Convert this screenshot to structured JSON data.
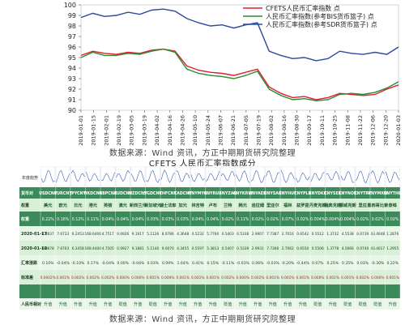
{
  "chart_data": [
    {
      "type": "line",
      "title": "",
      "ylim": [
        90,
        100
      ],
      "yticks": [
        90,
        91,
        92,
        93,
        94,
        95,
        96,
        97,
        98,
        99,
        100
      ],
      "x": [
        "2019-01-01",
        "2019-01-15",
        "2019-01-29",
        "2019-02-12",
        "2019-02-26",
        "2019-03-12",
        "2019-03-26",
        "2019-04-09",
        "2019-04-23",
        "2019-05-07",
        "2019-05-21",
        "2019-06-04",
        "2019-06-18",
        "2019-07-02",
        "2019-07-16",
        "2019-07-30",
        "2019-08-13",
        "2019-08-27",
        "2019-09-10",
        "2019-09-24",
        "2019-10-08",
        "2019-10-22",
        "2019-11-05",
        "2019-11-19",
        "2019-12-03",
        "2019-12-17",
        "2019-12-31",
        "2020-01-10"
      ],
      "xticklabels": [
        "2019-01-01",
        "2019-01-15",
        "2019-02-01",
        "2019-02-19",
        "2019-03-05",
        "2019-03-19",
        "2019-04-02",
        "2019-04-16",
        "2019-04-26",
        "2019-05-10",
        "2019-05-24",
        "2019-06-07",
        "2019-06-21",
        "2019-07-05",
        "2019-07-19",
        "2019-08-02",
        "2019-08-16",
        "2019-08-30",
        "2019-09-17",
        "2019-10-11",
        "2019-10-25",
        "2019-11-08",
        "2019-11-22",
        "2019-12-06",
        "2019-12-20",
        "2020-01-03"
      ],
      "legend_position": "top-right",
      "series": [
        {
          "name": "CFETS人民币汇率指数 点",
          "color": "#e0202a",
          "values": [
            95.2,
            95.6,
            95.4,
            95.3,
            95.5,
            95.4,
            95.7,
            95.8,
            95.6,
            94.2,
            93.8,
            93.6,
            93.5,
            93.3,
            93.6,
            93.9,
            92.2,
            91.6,
            91.2,
            91.3,
            91.0,
            91.2,
            91.6,
            91.5,
            91.4,
            91.5,
            92.0,
            92.4
          ]
        },
        {
          "name": "人民币汇率指数(参考BIS货币篮子) 点",
          "color": "#2a8a3a",
          "values": [
            95.0,
            95.5,
            95.2,
            95.2,
            95.4,
            95.3,
            95.6,
            95.8,
            95.5,
            93.9,
            93.5,
            93.3,
            93.2,
            93.0,
            93.3,
            93.7,
            92.0,
            91.4,
            91.0,
            91.1,
            90.9,
            91.0,
            91.5,
            91.6,
            91.5,
            91.7,
            92.1,
            92.7
          ]
        },
        {
          "name": "人民币汇率指数(参考SDR货币篮子) 点",
          "color": "#2a4aa0",
          "values": [
            98.8,
            99.2,
            98.9,
            99.0,
            99.3,
            99.1,
            99.5,
            99.6,
            99.4,
            98.7,
            98.3,
            98.0,
            98.1,
            97.8,
            98.1,
            98.3,
            95.6,
            95.2,
            94.9,
            95.0,
            94.7,
            94.9,
            95.6,
            95.4,
            95.3,
            95.5,
            95.3,
            96.0
          ]
        }
      ]
    }
  ],
  "captions": {
    "source1": "数据来源：Wind 资讯，方正中期期货研究院整理",
    "table_title": "CFETS 人民币汇率指数成分",
    "source2": "数据来源：Wind 资讯，方正中期期货研究院整理"
  },
  "table": {
    "corner_label": "年度趋势",
    "row_labels": [
      "货币对",
      "权重",
      "权重",
      "2020-01-17",
      "2020-01-10",
      "汇率涨跌",
      "标准差",
      "人民币相对"
    ],
    "columns": [
      "USDCNY",
      "EURCNY",
      "JPYCNY",
      "HKDCNY",
      "GBPCNY",
      "AUDCNY",
      "NZDCNY",
      "SGDCNY",
      "CHFCNY",
      "CADCNY",
      "CNYMYR",
      "CNYRUB",
      "CNYZAR",
      "CNYKRW",
      "CNYAED",
      "CNYSAR",
      "CNYHUF",
      "CNYPLN",
      "CNYDKK",
      "CNYSEK",
      "CNYNOK",
      "CNYTRY",
      "CNYMXN",
      "CNYTHB"
    ],
    "names": [
      "美元",
      "欧元",
      "日元",
      "港元",
      "英镑",
      "澳元",
      "新西兰元",
      "新加坡元",
      "瑞士法郎",
      "加元",
      "林吉特",
      "卢布",
      "兰特",
      "韩元",
      "迪拉姆",
      "里亚尔",
      "福林",
      "兹罗提",
      "丹麦克朗",
      "瑞典克朗",
      "挪威克朗",
      "里拉",
      "墨西哥比索",
      "泰铢"
    ],
    "weights": [
      "0.22%",
      "0.16%",
      "0.12%",
      "0.11%",
      "0.04%",
      "0.04%",
      "0.04%",
      "0.03%",
      "0.03%",
      "0.03%",
      "0.04%",
      "0.04%",
      "0.02%",
      "0.11%",
      "0.02%",
      "0.02%",
      "0.07%",
      "0.02%",
      "0.004%",
      "0.004%",
      "0.004%",
      "0.02%",
      "0.02%",
      "0.02%"
    ],
    "values_0117": [
      "6.8837",
      "7.6733",
      "6.2453",
      "168.6400",
      "4.7517",
      "0.0926",
      "9.1917",
      "5.1126",
      "8.9786",
      "4.3648",
      "0.5232",
      "5.7760",
      "0.5403",
      "0.5338",
      "2.9907",
      "7.7387",
      "2.7016",
      "0.6542",
      "0.5512",
      "1.3732",
      "4.5538",
      "0.0739",
      "43.4048",
      "1.2876"
    ],
    "values_0110": [
      "6.8878",
      "7.6703",
      "6.2458",
      "168.4400",
      "4.7505",
      "0.0927",
      "9.1881",
      "5.1140",
      "9.0070",
      "4.3455",
      "0.5597",
      "5.3813",
      "0.5407",
      "0.5339",
      "2.9931",
      "7.7366",
      "2.7062",
      "0.6550",
      "0.5506",
      "1.3778",
      "4.5666",
      "0.0740",
      "43.4017",
      "1.2955"
    ],
    "changes": [
      "0.10%",
      "-0.04%",
      "-0.10%",
      "0.17%",
      "-0.04%",
      "0.00%",
      "-0.04%",
      "0.03%",
      "0.09%",
      "1.64%",
      "0.41%",
      "0.15%",
      "-0.11%",
      "-0.03%",
      "0.06%",
      "-0.03%",
      "-0.20%",
      "-0.44%",
      "0.07%",
      "0.25%",
      "0.35%",
      "0.03%",
      "-0.30%",
      "0.22%"
    ],
    "stdev": [
      "0.0002%",
      "0.001%",
      "0.002%",
      "0.002%",
      "0.002%",
      "0.000%",
      "0.000%",
      "0.001%",
      "0.000%",
      "0.001%",
      "0.001%",
      "0.001%",
      "0.002%",
      "0.000%",
      "0.002%",
      "0.001%",
      "0.001%",
      "0.001%",
      "0.000%",
      "0.001%",
      "0.001%",
      "0.002%",
      "0.000%",
      "0.001%"
    ],
    "trend": [
      "升值",
      "升值",
      "升值",
      "升值",
      "升值",
      "贬值",
      "升值",
      "贬值",
      "升值",
      "升值",
      "升值",
      "升值",
      "贬值",
      "升值",
      "升值",
      "升值",
      "升值",
      "升值",
      "贬值",
      "升值",
      "贬值",
      "贬值",
      "贬值",
      "升值"
    ]
  }
}
